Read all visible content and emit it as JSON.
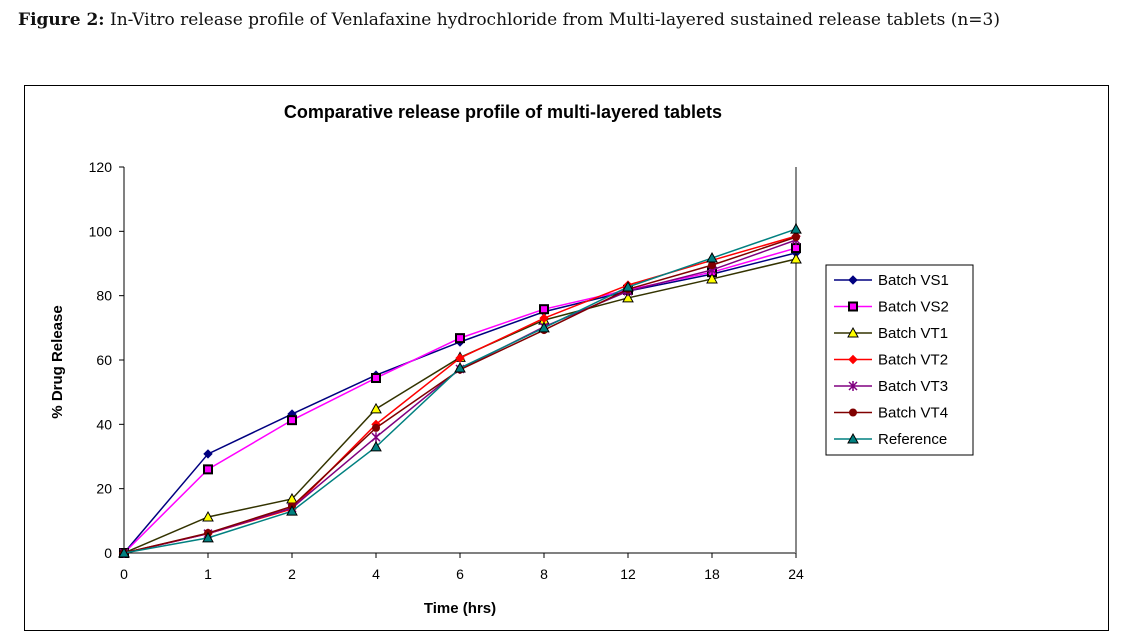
{
  "caption": {
    "label": "Figure 2:",
    "text": "In-Vitro release profile of Venlafaxine hydrochloride from Multi-layered sustained release tablets (n=3)"
  },
  "chart_data": {
    "type": "line",
    "title": "Comparative release profile of multi-layered tablets",
    "xlabel": "Time (hrs)",
    "ylabel": "% Drug Release",
    "categories": [
      "0",
      "1",
      "2",
      "4",
      "6",
      "8",
      "12",
      "18",
      "24"
    ],
    "ylim": [
      0,
      120
    ],
    "yticks": [
      0,
      20,
      40,
      60,
      80,
      100,
      120
    ],
    "grid": false,
    "legend": "right",
    "series": [
      {
        "name": "Batch VS1",
        "color": "#000080",
        "marker": "diamond",
        "marker_fill": "#000080",
        "values": [
          0,
          30.8,
          43.2,
          55.3,
          65.6,
          75.0,
          81.4,
          86.7,
          93.3
        ]
      },
      {
        "name": "Batch VS2",
        "color": "#FF00FF",
        "marker": "square",
        "marker_fill": "#FF00FF",
        "values": [
          0,
          26.0,
          41.3,
          54.4,
          66.8,
          75.8,
          81.8,
          87.3,
          94.8
        ]
      },
      {
        "name": "Batch VT1",
        "color": "#333300",
        "marker": "triangle",
        "marker_fill": "#FFFF00",
        "values": [
          0,
          11.2,
          16.8,
          44.8,
          60.8,
          72.4,
          79.3,
          85.2,
          91.4
        ]
      },
      {
        "name": "Batch VT2",
        "color": "#FF0000",
        "marker": "diamond",
        "marker_fill": "#FF0000",
        "values": [
          0,
          6.0,
          13.7,
          40.0,
          60.6,
          73.0,
          83.3,
          91.0,
          98.5
        ]
      },
      {
        "name": "Batch VT3",
        "color": "#800080",
        "marker": "star",
        "marker_fill": "#800080",
        "values": [
          0,
          6.0,
          14.0,
          36.0,
          57.2,
          70.3,
          81.4,
          88.0,
          97.3
        ]
      },
      {
        "name": "Batch VT4",
        "color": "#800000",
        "marker": "circle",
        "marker_fill": "#800000",
        "values": [
          0,
          6.2,
          14.5,
          38.9,
          57.0,
          69.3,
          82.0,
          89.5,
          98.2
        ]
      },
      {
        "name": "Reference",
        "color": "#008080",
        "marker": "triangle",
        "marker_fill": "#008080",
        "values": [
          0,
          4.7,
          13.0,
          33.0,
          57.5,
          70.0,
          82.7,
          91.7,
          100.7
        ]
      }
    ]
  }
}
